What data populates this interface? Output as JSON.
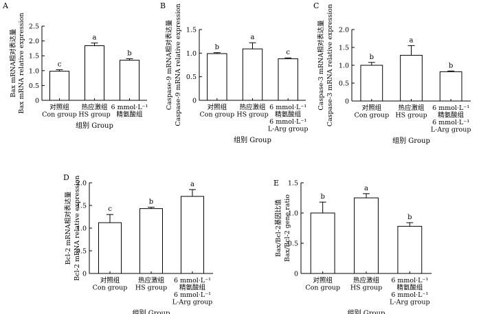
{
  "chart_data": [
    {
      "panel": "A",
      "type": "bar",
      "categories": [
        [
          "对照组",
          "Con group"
        ],
        [
          "热应激组",
          "HS group"
        ],
        [
          "6 mmol·L⁻¹",
          "精氨酸组"
        ]
      ],
      "values": [
        0.98,
        1.84,
        1.35
      ],
      "errors": [
        0.05,
        0.09,
        0.05
      ],
      "letters": [
        "c",
        "a",
        "b"
      ],
      "ylabel_cn": "Bax mRNA相对表达量",
      "ylabel_en": "Bax mRNA relative expression",
      "gene": "Bax",
      "ylim": [
        0,
        2.5
      ],
      "yticks": [
        0,
        0.5,
        1.0,
        1.5,
        2.0,
        2.5
      ],
      "xlabel": "组别  Group"
    },
    {
      "panel": "B",
      "type": "bar",
      "categories": [
        [
          "对照组",
          "Con group"
        ],
        [
          "热应激组",
          "HS group"
        ],
        [
          "6 mmol·L⁻¹",
          "精氨酸组",
          "6 mmol·L⁻¹",
          "L-Arg group"
        ]
      ],
      "values": [
        0.99,
        1.09,
        0.88
      ],
      "errors": [
        0.02,
        0.13,
        0.02
      ],
      "letters": [
        "b",
        "a",
        "c"
      ],
      "ylabel_cn": "Caspase-9 mRNA相对表达量",
      "ylabel_en": "Caspase-9 mRNA relative expression",
      "gene": "Caspase-9",
      "ylim": [
        0,
        1.5
      ],
      "yticks": [
        0,
        0.5,
        1.0,
        1.5
      ],
      "xlabel": "组别  Group"
    },
    {
      "panel": "C",
      "type": "bar",
      "categories": [
        [
          "对照组",
          "Con group"
        ],
        [
          "热应激组",
          "HS group"
        ],
        [
          "6 mmol·L⁻¹",
          "精氨酸组",
          "6 mmol·L⁻¹",
          "L-Arg group"
        ]
      ],
      "values": [
        1.0,
        1.28,
        0.82
      ],
      "errors": [
        0.08,
        0.27,
        0.02
      ],
      "letters": [
        "b",
        "a",
        "b"
      ],
      "ylabel_cn": "Caspase-3 mRNA相对表达量",
      "ylabel_en": "Caspase-3 mRNA relative expression",
      "gene": "Caspase-3",
      "ylim": [
        0,
        2.0
      ],
      "yticks": [
        0,
        0.5,
        1.0,
        1.5,
        2.0
      ],
      "xlabel": "组别  Group"
    },
    {
      "panel": "D",
      "type": "bar",
      "categories": [
        [
          "对照组",
          "Con group"
        ],
        [
          "热应激组",
          "HS group"
        ],
        [
          "6 mmol·L⁻¹",
          "精氨酸组",
          "6 mmol·L⁻¹",
          "L-Arg group"
        ]
      ],
      "values": [
        1.12,
        1.43,
        1.7
      ],
      "errors": [
        0.18,
        0.03,
        0.15
      ],
      "letters": [
        "c",
        "b",
        "a"
      ],
      "ylabel_cn": "Bcl-2 mRNA相对表达量",
      "ylabel_en": "Bcl-2 mRNA relative expression",
      "gene": "Bcl-2",
      "ylim": [
        0,
        2.0
      ],
      "yticks": [
        0,
        0.5,
        1.0,
        1.5,
        2.0
      ],
      "xlabel": "组别  Group"
    },
    {
      "panel": "E",
      "type": "bar",
      "categories": [
        [
          "对照组",
          "Con group"
        ],
        [
          "热应激组",
          "HS group"
        ],
        [
          "6 mmol·L⁻¹",
          "精氨酸组",
          "6 mmol·L⁻¹",
          "L-Arg group"
        ]
      ],
      "values": [
        1.0,
        1.25,
        0.78
      ],
      "errors": [
        0.18,
        0.07,
        0.06
      ],
      "letters": [
        "b",
        "a",
        "b"
      ],
      "ylabel_cn": "Bax/Bcl-2基因比值",
      "ylabel_en": "Bax/Bcl-2 gene ratio",
      "gene": "Bax/Bcl-2",
      "ylim": [
        0,
        1.5
      ],
      "yticks": [
        0,
        0.5,
        1.0,
        1.5
      ],
      "xlabel": "组别  Group"
    }
  ]
}
